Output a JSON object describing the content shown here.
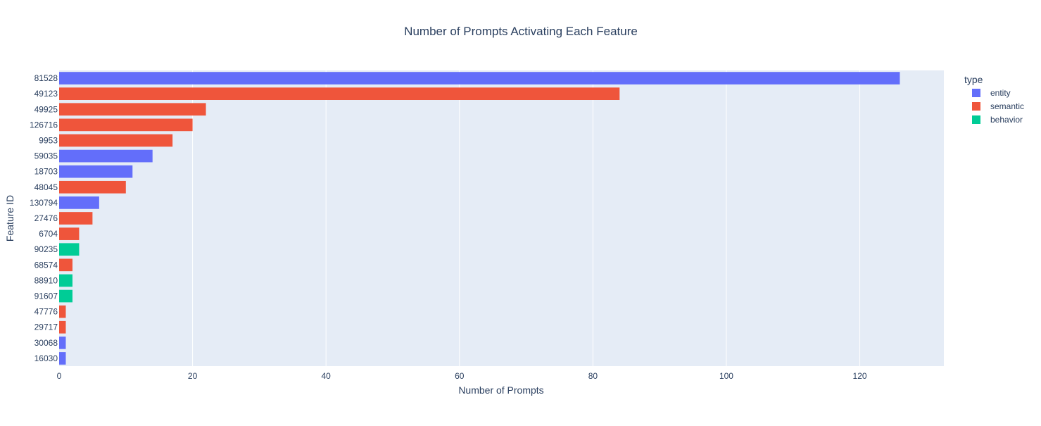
{
  "chart_data": {
    "type": "bar",
    "orientation": "horizontal",
    "title": "Number of Prompts Activating Each Feature",
    "xlabel": "Number of Prompts",
    "ylabel": "Feature ID",
    "xlim": [
      0,
      132.6
    ],
    "xticks": [
      0,
      20,
      40,
      60,
      80,
      100,
      120
    ],
    "grid": true,
    "legend": {
      "title": "type",
      "placement": "top-right",
      "entries": [
        {
          "name": "entity",
          "color": "#636efa"
        },
        {
          "name": "semantic",
          "color": "#ef553b"
        },
        {
          "name": "behavior",
          "color": "#00cc96"
        }
      ]
    },
    "categories": [
      "81528",
      "49123",
      "49925",
      "126716",
      "9953",
      "59035",
      "18703",
      "48045",
      "130794",
      "27476",
      "6704",
      "90235",
      "68574",
      "88910",
      "91607",
      "47776",
      "29717",
      "30068",
      "16030"
    ],
    "values": [
      126,
      84,
      22,
      20,
      17,
      14,
      11,
      10,
      6,
      5,
      3,
      3,
      2,
      2,
      2,
      1,
      1,
      1,
      1
    ],
    "types": [
      "entity",
      "semantic",
      "semantic",
      "semantic",
      "semantic",
      "entity",
      "entity",
      "semantic",
      "entity",
      "semantic",
      "semantic",
      "behavior",
      "semantic",
      "behavior",
      "behavior",
      "semantic",
      "semantic",
      "entity",
      "entity"
    ]
  },
  "colors": {
    "plot_background": "#e5ecf6",
    "grid": "#ffffff",
    "text": "#2a3f5f"
  }
}
